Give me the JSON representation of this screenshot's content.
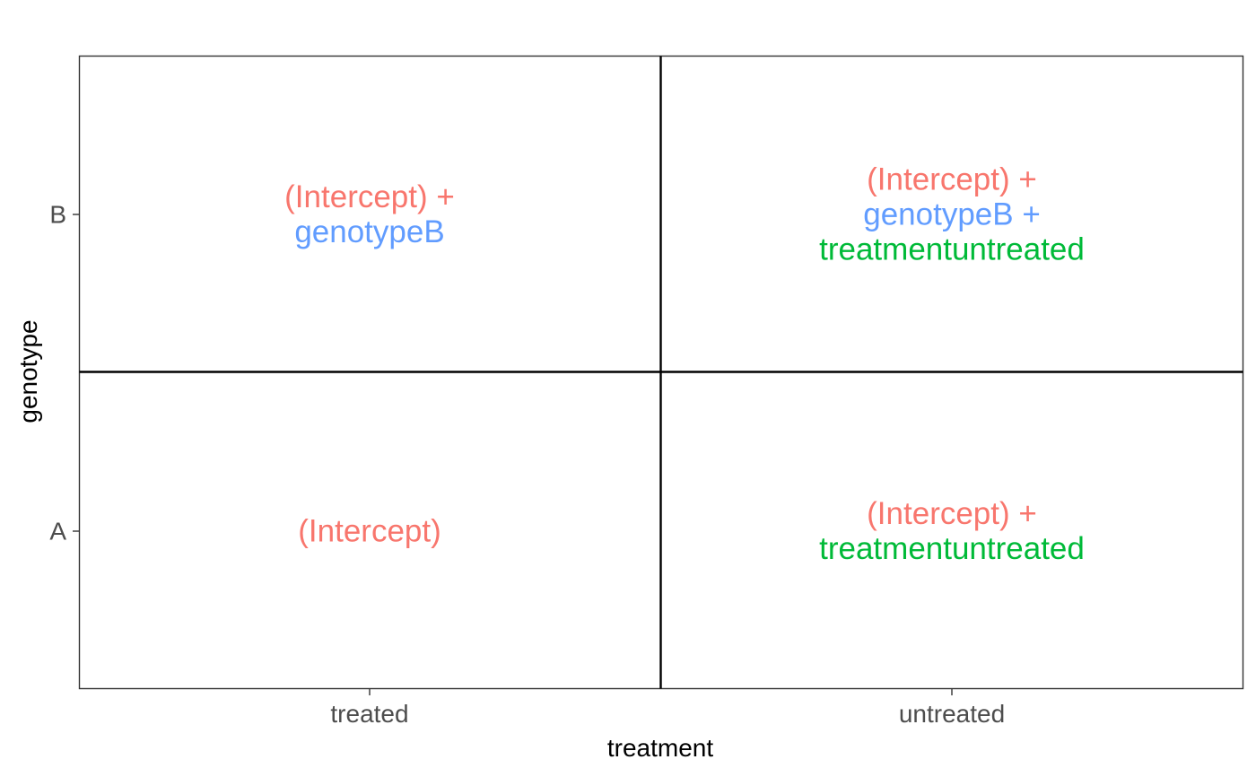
{
  "plot": {
    "x_axis_title": "treatment",
    "y_axis_title": "genotype",
    "x_ticks": [
      "treated",
      "untreated"
    ],
    "y_ticks": [
      "A",
      "B"
    ]
  },
  "colors": {
    "intercept": "#F8766D",
    "genotype": "#619CFF",
    "treatment": "#00BA38"
  },
  "cells": {
    "B_treated": [
      {
        "text": "(Intercept) +",
        "term": "intercept"
      },
      {
        "text": "genotypeB",
        "term": "genotype"
      }
    ],
    "B_untreated": [
      {
        "text": "(Intercept) +",
        "term": "intercept"
      },
      {
        "text": "genotypeB +",
        "term": "genotype"
      },
      {
        "text": "treatmentuntreated",
        "term": "treatment"
      }
    ],
    "A_treated": [
      {
        "text": "(Intercept)",
        "term": "intercept"
      }
    ],
    "A_untreated": [
      {
        "text": "(Intercept) +",
        "term": "intercept"
      },
      {
        "text": "treatmentuntreated",
        "term": "treatment"
      }
    ]
  }
}
